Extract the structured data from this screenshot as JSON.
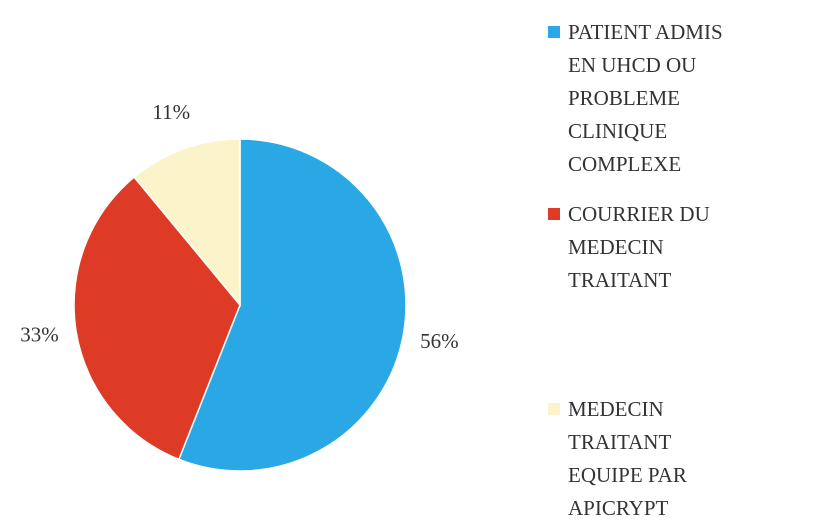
{
  "chart_data": {
    "type": "pie",
    "categories": [
      "PATIENT ADMIS EN UHCD OU PROBLEME CLINIQUE COMPLEXE",
      "COURRIER DU MEDECIN TRAITANT",
      "MEDECIN TRAITANT EQUIPE PAR APICRYPT"
    ],
    "values": [
      56,
      33,
      11
    ],
    "value_labels": [
      "56%",
      "33%",
      "11%"
    ],
    "colors": [
      "#2aa8e6",
      "#de3b26",
      "#fbf3c9"
    ],
    "legend": "right"
  }
}
